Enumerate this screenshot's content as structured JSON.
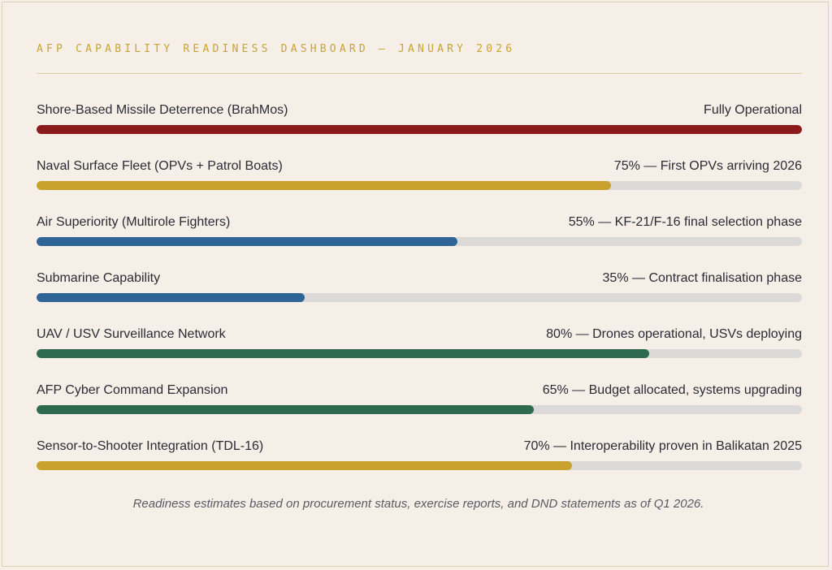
{
  "chart_data": {
    "type": "bar",
    "orientation": "horizontal",
    "title": "AFP CAPABILITY READINESS DASHBOARD — JANUARY 2026",
    "categories": [
      "Shore-Based Missile Deterrence (BrahMos)",
      "Naval Surface Fleet (OPVs + Patrol Boats)",
      "Air Superiority (Multirole Fighters)",
      "Submarine Capability",
      "UAV / USV Surveillance Network",
      "AFP Cyber Command Expansion",
      "Sensor-to-Shooter Integration (TDL-16)"
    ],
    "values": [
      100,
      75,
      55,
      35,
      80,
      65,
      70
    ],
    "xlim": [
      0,
      100
    ],
    "rows": [
      {
        "label": "Shore-Based Missile Deterrence (BrahMos)",
        "status": "Fully Operational",
        "value": 100,
        "color": "#8b1a1a"
      },
      {
        "label": "Naval Surface Fleet (OPVs + Patrol Boats)",
        "status": "75% — First OPVs arriving 2026",
        "value": 75,
        "color": "#c9a22d"
      },
      {
        "label": "Air Superiority (Multirole Fighters)",
        "status": "55% — KF-21/F-16 final selection phase",
        "value": 55,
        "color": "#2e6496"
      },
      {
        "label": "Submarine Capability",
        "status": "35% — Contract finalisation phase",
        "value": 35,
        "color": "#2e6496"
      },
      {
        "label": "UAV / USV Surveillance Network",
        "status": "80% — Drones operational, USVs deploying",
        "value": 80,
        "color": "#2e6b4e"
      },
      {
        "label": "AFP Cyber Command Expansion",
        "status": "65% — Budget allocated, systems upgrading",
        "value": 65,
        "color": "#2e6b4e"
      },
      {
        "label": "Sensor-to-Shooter Integration (TDL-16)",
        "status": "70% — Interoperability proven in Balikatan 2025",
        "value": 70,
        "color": "#c9a22d"
      }
    ],
    "track_color": "#dcdad8",
    "note": "Readiness estimates based on procurement status, exercise reports, and DND statements as of Q1 2026."
  },
  "colors": {
    "title": "#c8a433",
    "background": "#f5efe8",
    "border": "#ddd2b2"
  }
}
